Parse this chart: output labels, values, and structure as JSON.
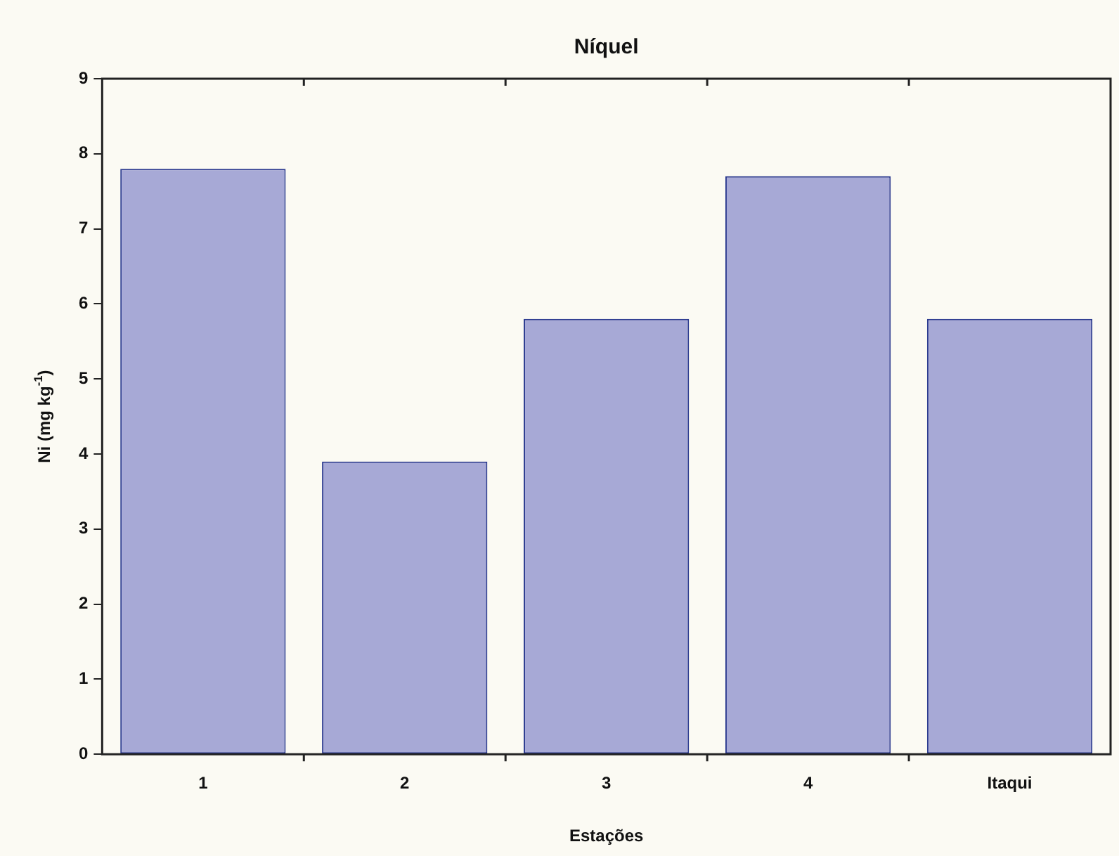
{
  "chart_data": {
    "type": "bar",
    "title": "Níquel",
    "xlabel": "Estações",
    "ylabel": "Ni (mg kg$^{-1}$)",
    "categories": [
      "1",
      "2",
      "3",
      "4",
      "Itaqui"
    ],
    "values": [
      7.8,
      3.9,
      5.8,
      7.7,
      5.8
    ],
    "color": "#a7a9d6",
    "ylim": [
      0,
      9
    ],
    "yticks": [
      0,
      1,
      2,
      3,
      4,
      5,
      6,
      7,
      8,
      9
    ],
    "grid": false,
    "legend": false
  }
}
